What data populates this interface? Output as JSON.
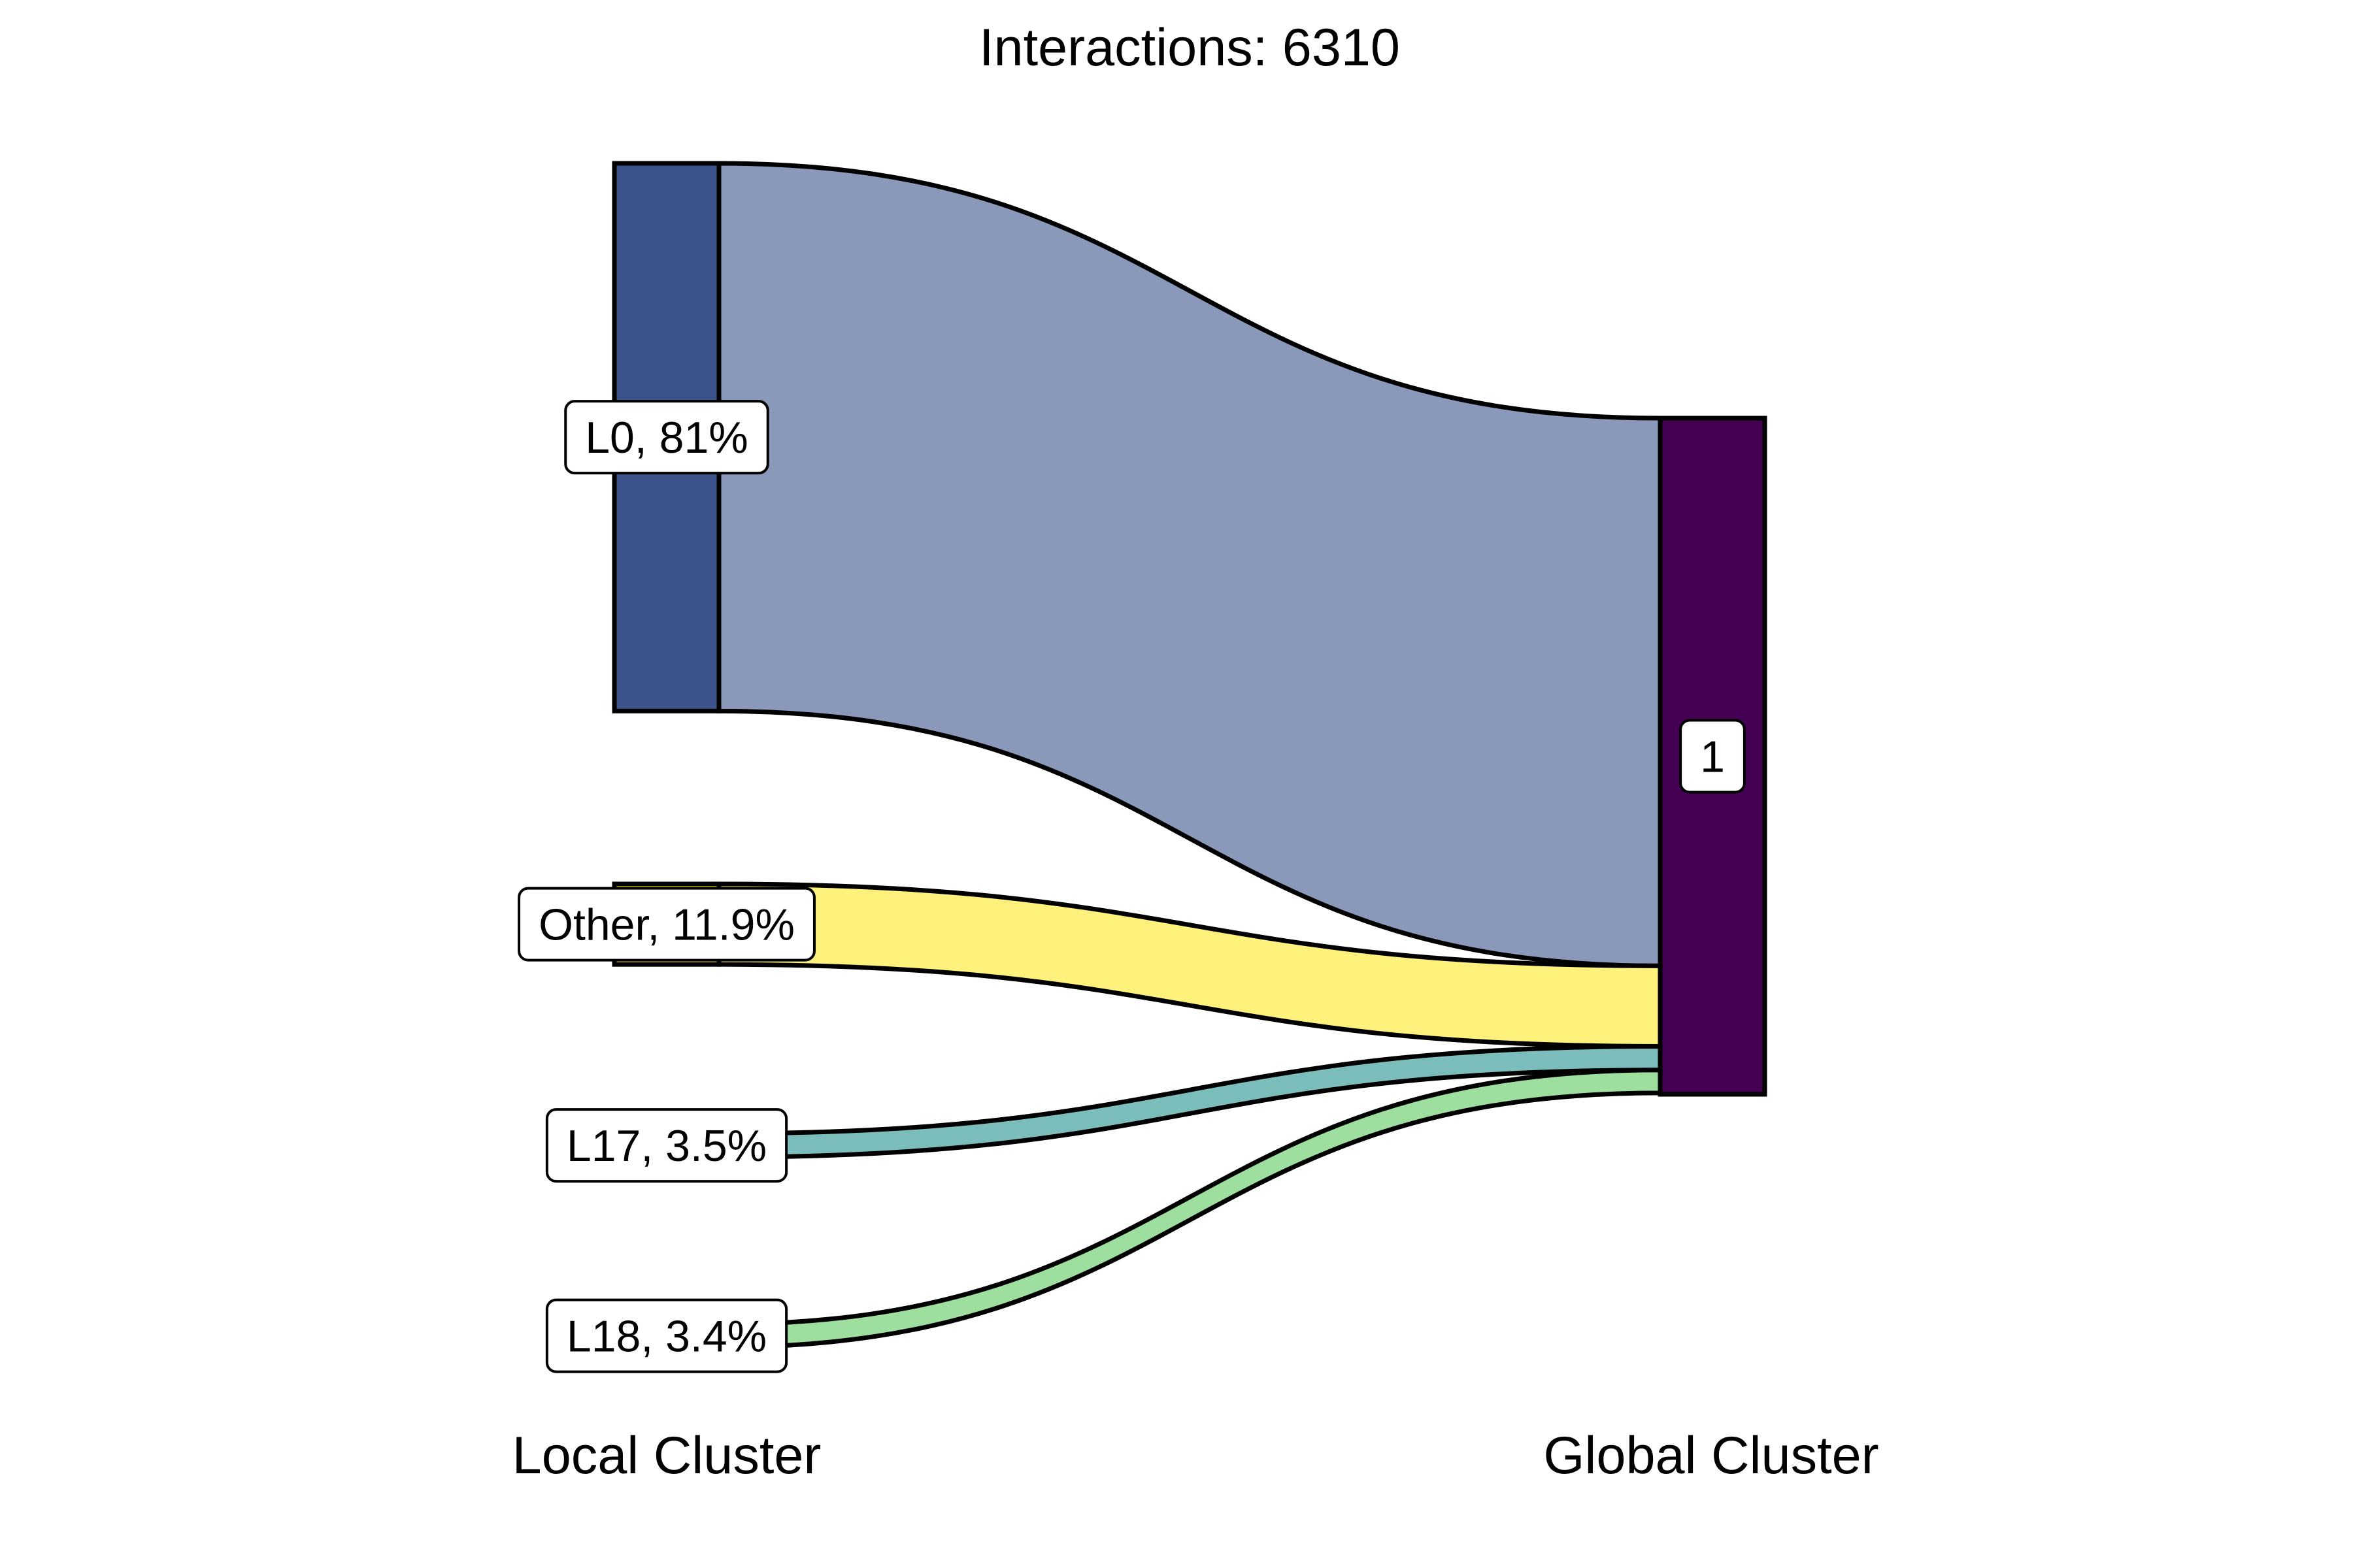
{
  "chart_data": {
    "type": "sankey",
    "title": "Interactions: 6310",
    "axes": [
      {
        "name": "Local Cluster"
      },
      {
        "name": "Global Cluster"
      }
    ],
    "source_nodes": [
      {
        "id": "L0",
        "label": "L0, 81%",
        "percent": 81.0,
        "color": "#3b528b"
      },
      {
        "id": "Other",
        "label": "Other, 11.9%",
        "percent": 11.9,
        "color": "#fde725"
      },
      {
        "id": "L17",
        "label": "L17, 3.5%",
        "percent": 3.5,
        "color": "#21918c"
      },
      {
        "id": "L18",
        "label": "L18, 3.4%",
        "percent": 3.4,
        "color": "#5ec962"
      }
    ],
    "target_nodes": [
      {
        "id": "1",
        "label": "1",
        "percent": 100.0,
        "color": "#440154"
      }
    ],
    "links": [
      {
        "source": "L0",
        "target": "1",
        "percent": 81.0,
        "color": "#8a99b9"
      },
      {
        "source": "Other",
        "target": "1",
        "percent": 11.9,
        "color": "#fef27c"
      },
      {
        "source": "L17",
        "target": "1",
        "percent": 3.5,
        "color": "#7abdba"
      },
      {
        "source": "L18",
        "target": "1",
        "percent": 3.4,
        "color": "#9edfa0"
      }
    ]
  }
}
